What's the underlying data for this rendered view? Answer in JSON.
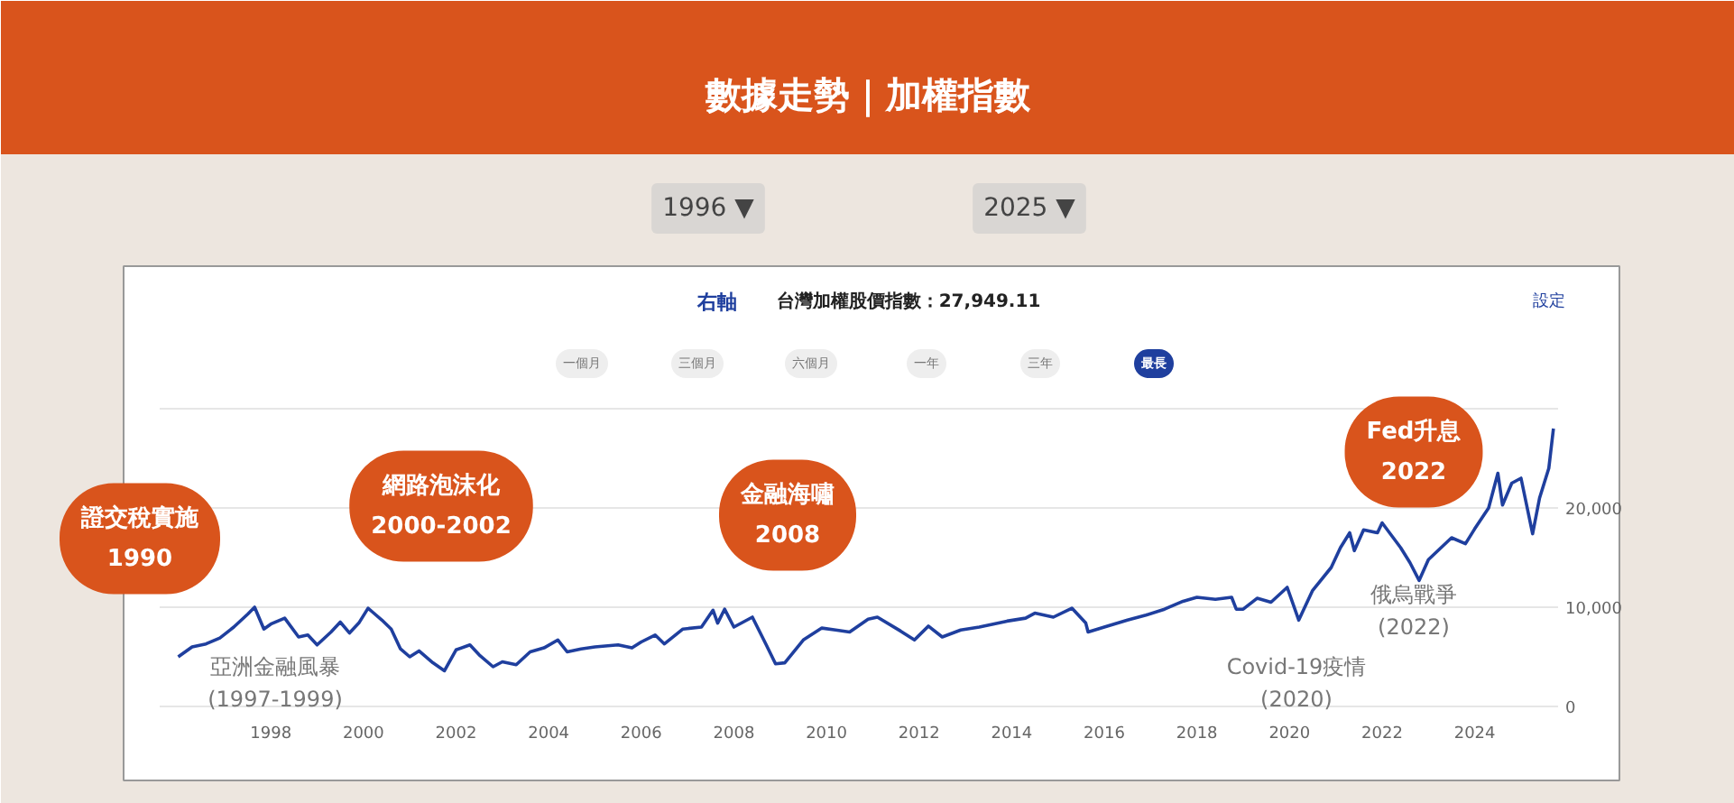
{
  "chart_data": {
    "type": "line",
    "title": "數據走勢｜加權指數",
    "annotations": [
      "1996 ▼",
      "2025 ▼",
      "右軸",
      "台灣加權股價指數：27,949.11",
      "設定",
      "一個月",
      "三個月",
      "六個月",
      "一年",
      "三年",
      "最長",
      "證交稅實施\n1990",
      "網路泡沫化\n2000-2002",
      "金融海嘯\n2008",
      "Fed升息\n2022",
      "亞洲金融風暴\n(1997-1999)",
      "Covid-19疫情\n(2020)",
      "俄烏戰爭\n(2022)"
    ],
    "x": [
      1996.0,
      1996.3,
      1996.6,
      1996.9,
      1997.2,
      1997.5,
      1997.65,
      1997.85,
      1998.0,
      1998.3,
      1998.6,
      1998.8,
      1999.0,
      1999.3,
      1999.5,
      1999.7,
      1999.9,
      2000.1,
      2000.2,
      2000.4,
      2000.6,
      2000.8,
      2001.0,
      2001.2,
      2001.5,
      2001.75,
      2002.0,
      2002.3,
      2002.5,
      2002.8,
      2003.0,
      2003.3,
      2003.6,
      2003.9,
      2004.2,
      2004.4,
      2004.7,
      2005.0,
      2005.5,
      2005.8,
      2006.0,
      2006.3,
      2006.5,
      2006.9,
      2007.3,
      2007.55,
      2007.65,
      2007.8,
      2008.0,
      2008.4,
      2008.7,
      2008.9,
      2009.1,
      2009.5,
      2009.9,
      2010.2,
      2010.5,
      2010.9,
      2011.1,
      2011.6,
      2011.9,
      2012.2,
      2012.5,
      2012.9,
      2013.3,
      2013.9,
      2014.3,
      2014.5,
      2014.9,
      2015.3,
      2015.6,
      2015.65,
      2016.0,
      2016.5,
      2016.9,
      2017.3,
      2017.7,
      2018.0,
      2018.4,
      2018.75,
      2018.85,
      2019.0,
      2019.3,
      2019.6,
      2019.95,
      2020.2,
      2020.5,
      2020.9,
      2021.1,
      2021.3,
      2021.4,
      2021.6,
      2021.9,
      2022.0,
      2022.4,
      2022.6,
      2022.8,
      2023.0,
      2023.5,
      2023.8,
      2024.0,
      2024.3,
      2024.5,
      2024.6,
      2024.8,
      2025.0,
      2025.25,
      2025.4,
      2025.6,
      2025.7
    ],
    "series": [
      {
        "color": "#1f3f9e",
        "values": [
          5000,
          6000,
          6300,
          6900,
          8000,
          9300,
          10000,
          7800,
          8300,
          8900,
          7000,
          7200,
          6200,
          7500,
          8500,
          7400,
          8400,
          9900,
          9500,
          8700,
          7800,
          5800,
          5000,
          5600,
          4400,
          3600,
          5700,
          6200,
          5200,
          4000,
          4500,
          4200,
          5500,
          5900,
          6700,
          5500,
          5800,
          6000,
          6200,
          5900,
          6500,
          7200,
          6300,
          7800,
          8000,
          9700,
          8400,
          9800,
          8000,
          9000,
          6200,
          4300,
          4400,
          6700,
          7900,
          7700,
          7500,
          8800,
          9000,
          7600,
          6700,
          8100,
          7000,
          7700,
          8000,
          8600,
          8900,
          9400,
          9000,
          9900,
          8400,
          7500,
          8000,
          8700,
          9200,
          9800,
          10600,
          11000,
          10800,
          11000,
          9800,
          9800,
          10900,
          10500,
          12000,
          8700,
          11700,
          14000,
          16000,
          17500,
          15700,
          17800,
          17500,
          18500,
          16000,
          14500,
          12700,
          14800,
          17000,
          16400,
          17900,
          20000,
          23500,
          20300,
          22500,
          23000,
          17400,
          21000,
          24000,
          28000
        ]
      }
    ],
    "xlim": [
      1995.6,
      2025.8
    ],
    "ylim": [
      0,
      30000
    ],
    "xticks": [
      1998,
      2000,
      2002,
      2004,
      2006,
      2008,
      2010,
      2012,
      2014,
      2016,
      2018,
      2020,
      2022,
      2024
    ],
    "yticks": [
      0,
      {
        "value": 10000,
        "label": "10,000"
      },
      {
        "value": 20000,
        "label": "20,000"
      },
      {
        "value": 30000,
        "label": null
      }
    ],
    "grid": "y",
    "marker": "none",
    "line_style": "solid"
  }
}
